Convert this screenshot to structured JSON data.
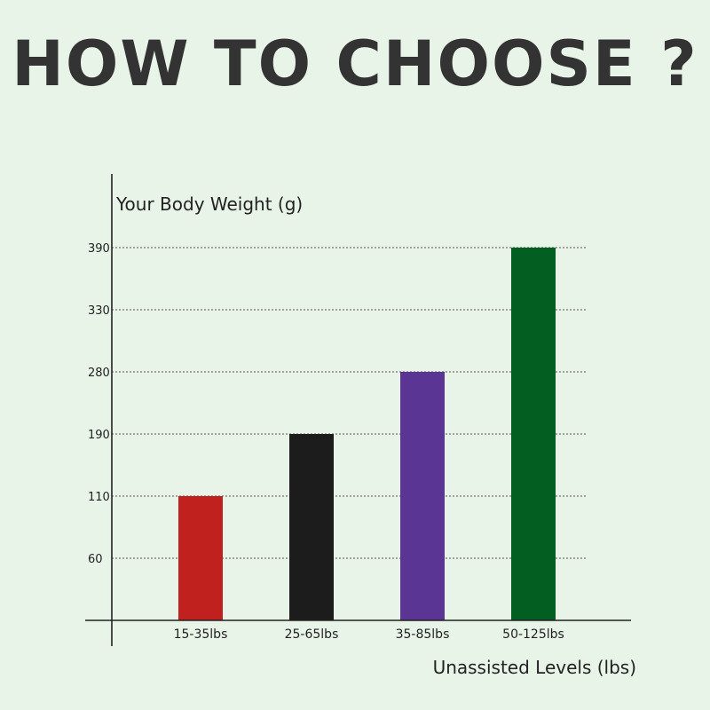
{
  "title": "HOW TO CHOOSE ?",
  "chart_data": {
    "type": "bar",
    "categories": [
      "15-35lbs",
      "25-65lbs",
      "35-85lbs",
      "50-125lbs"
    ],
    "values": [
      110,
      190,
      280,
      390
    ],
    "colors": [
      "#c0211f",
      "#1c1c1c",
      "#5b3593",
      "#025f21"
    ],
    "yticks": [
      60,
      110,
      190,
      280,
      330,
      390
    ],
    "ylabel": "Your Body Weight (g)",
    "xlabel": "Unassisted Levels (lbs)",
    "grid": true,
    "grid_style": "dotted"
  }
}
